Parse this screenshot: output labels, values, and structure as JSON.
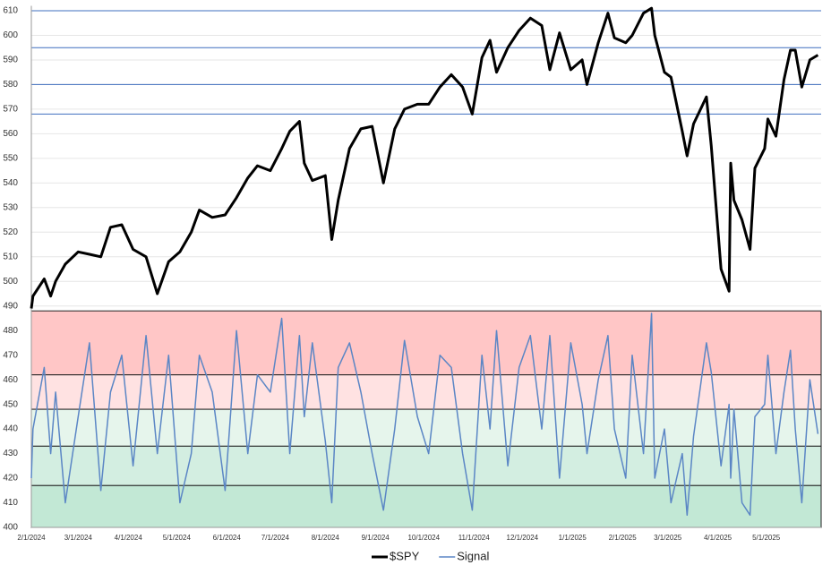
{
  "chart_data": {
    "type": "line",
    "x": [
      "2/1/2024",
      "2/2/2024",
      "2/9/2024",
      "2/13/2024",
      "2/16/2024",
      "2/22/2024",
      "3/1/2024",
      "3/8/2024",
      "3/15/2024",
      "3/21/2024",
      "3/28/2024",
      "4/4/2024",
      "4/12/2024",
      "4/19/2024",
      "4/26/2024",
      "5/3/2024",
      "5/10/2024",
      "5/15/2024",
      "5/23/2024",
      "5/31/2024",
      "6/7/2024",
      "6/14/2024",
      "6/20/2024",
      "6/28/2024",
      "7/5/2024",
      "7/10/2024",
      "7/16/2024",
      "7/19/2024",
      "7/24/2024",
      "8/1/2024",
      "8/5/2024",
      "8/9/2024",
      "8/16/2024",
      "8/23/2024",
      "8/30/2024",
      "9/6/2024",
      "9/13/2024",
      "9/19/2024",
      "9/27/2024",
      "10/4/2024",
      "10/11/2024",
      "10/18/2024",
      "10/25/2024",
      "10/31/2024",
      "11/6/2024",
      "11/11/2024",
      "11/15/2024",
      "11/22/2024",
      "11/29/2024",
      "12/6/2024",
      "12/13/2024",
      "12/18/2024",
      "12/24/2024",
      "12/31/2024",
      "1/7/2025",
      "1/10/2025",
      "1/17/2025",
      "1/23/2025",
      "1/27/2025",
      "2/3/2025",
      "2/7/2025",
      "2/14/2025",
      "2/19/2025",
      "2/21/2025",
      "2/27/2025",
      "3/3/2025",
      "3/10/2025",
      "3/13/2025",
      "3/17/2025",
      "3/25/2025",
      "3/28/2025",
      "4/3/2025",
      "4/8/2025",
      "4/9/2025",
      "4/11/2025",
      "4/16/2025",
      "4/21/2025",
      "4/24/2025",
      "4/30/2025",
      "5/2/2025",
      "5/7/2025",
      "5/12/2025",
      "5/16/2025",
      "5/19/2025",
      "5/23/2025",
      "5/28/2025",
      "6/2/2025"
    ],
    "series": [
      {
        "name": "$SPY",
        "color": "#000000",
        "width": 3,
        "values": [
          489,
          494,
          501,
          494,
          500,
          507,
          512,
          511,
          510,
          522,
          523,
          513,
          510,
          495,
          508,
          512,
          520,
          529,
          526,
          527,
          534,
          542,
          547,
          545,
          554,
          561,
          565,
          548,
          541,
          543,
          517,
          533,
          554,
          562,
          563,
          540,
          562,
          570,
          572,
          572,
          579,
          584,
          579,
          568,
          591,
          598,
          585,
          595,
          602,
          607,
          604,
          586,
          601,
          586,
          590,
          580,
          597,
          609,
          599,
          597,
          600,
          609,
          611,
          600,
          585,
          583,
          561,
          551,
          564,
          575,
          555,
          505,
          496,
          548,
          533,
          525,
          513,
          546,
          554,
          566,
          559,
          582,
          594,
          594,
          579,
          590,
          592
        ]
      },
      {
        "name": "Signal",
        "color": "#5b86c5",
        "width": 1.5,
        "values": [
          420,
          440,
          465,
          430,
          455,
          410,
          445,
          475,
          415,
          455,
          470,
          425,
          478,
          430,
          470,
          410,
          430,
          470,
          455,
          415,
          480,
          430,
          462,
          455,
          485,
          430,
          478,
          445,
          475,
          435,
          410,
          465,
          475,
          455,
          430,
          407,
          440,
          476,
          445,
          430,
          470,
          465,
          430,
          407,
          470,
          440,
          480,
          425,
          465,
          478,
          440,
          478,
          420,
          475,
          450,
          430,
          460,
          478,
          440,
          420,
          470,
          430,
          487,
          420,
          440,
          410,
          430,
          405,
          437,
          475,
          463,
          425,
          450,
          420,
          448,
          410,
          405,
          445,
          450,
          470,
          430,
          455,
          472,
          440,
          410,
          460,
          438
        ]
      }
    ],
    "xlim": [
      "2/1/2024",
      "6/4/2025"
    ],
    "xticks": [
      "2/1/2024",
      "3/1/2024",
      "4/1/2024",
      "5/1/2024",
      "6/1/2024",
      "7/1/2024",
      "8/1/2024",
      "9/1/2024",
      "10/1/2024",
      "11/1/2024",
      "12/1/2024",
      "1/1/2025",
      "2/1/2025",
      "3/1/2025",
      "4/1/2025",
      "5/1/2025"
    ],
    "ylim": [
      400,
      612
    ],
    "yticks": [
      400,
      410,
      420,
      430,
      440,
      450,
      460,
      470,
      480,
      490,
      500,
      510,
      520,
      530,
      540,
      550,
      560,
      570,
      580,
      590,
      600,
      610
    ],
    "grid": true,
    "bands": [
      {
        "from": 462,
        "to": 488,
        "color": "#ffc6c6"
      },
      {
        "from": 448,
        "to": 462,
        "color": "#ffe2e2"
      },
      {
        "from": 433,
        "to": 448,
        "color": "#e6f5ec"
      },
      {
        "from": 417,
        "to": 433,
        "color": "#d3eee1"
      },
      {
        "from": 400,
        "to": 417,
        "color": "#c2e8d5"
      }
    ],
    "reference_lines": {
      "color": "#3f6fbf",
      "values": [
        610,
        595,
        580,
        568
      ]
    },
    "legend": "bottom"
  }
}
